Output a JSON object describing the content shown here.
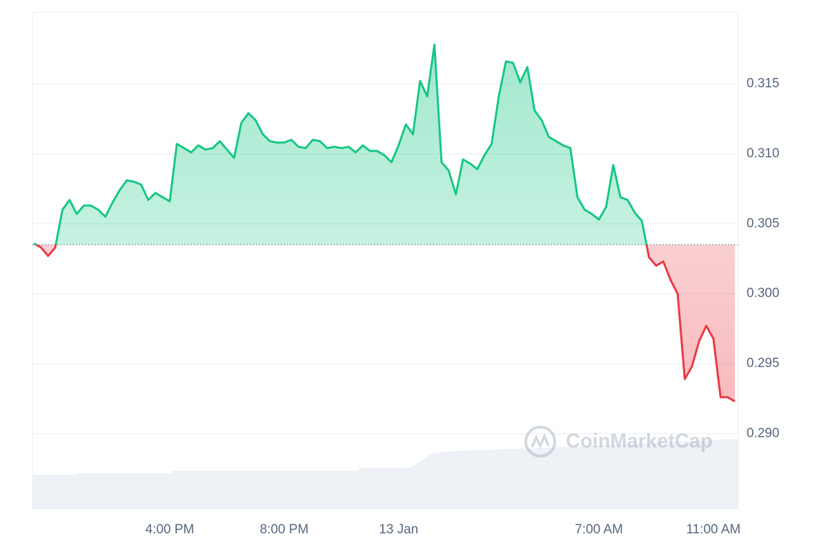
{
  "chart_data": {
    "type": "line",
    "categories": [
      null,
      null,
      null,
      null,
      null,
      null,
      null,
      null,
      null,
      null,
      null,
      null,
      null,
      null,
      null,
      null,
      null,
      null,
      null,
      "4:00 PM",
      null,
      null,
      null,
      null,
      null,
      null,
      null,
      null,
      null,
      null,
      null,
      null,
      null,
      null,
      null,
      "8:00 PM",
      null,
      null,
      null,
      null,
      null,
      null,
      null,
      null,
      null,
      null,
      null,
      null,
      null,
      null,
      null,
      "13 Jan",
      null,
      null,
      null,
      null,
      null,
      null,
      null,
      null,
      null,
      null,
      null,
      null,
      null,
      null,
      null,
      null,
      null,
      null,
      null,
      null,
      null,
      null,
      null,
      null,
      null,
      null,
      null,
      "7:00 AM",
      null,
      null,
      null,
      null,
      null,
      null,
      null,
      null,
      null,
      null,
      null,
      null,
      null,
      null,
      null,
      "11:00 AM",
      null,
      null,
      null
    ],
    "values": [
      0.3036,
      0.3033,
      0.3027,
      0.3033,
      0.306,
      0.3067,
      0.3057,
      0.3063,
      0.3063,
      0.306,
      0.3055,
      0.3065,
      0.3074,
      0.3081,
      0.308,
      0.3078,
      0.3067,
      0.3072,
      0.3069,
      0.3066,
      0.3107,
      0.3104,
      0.3101,
      0.3106,
      0.3103,
      0.3104,
      0.3109,
      0.3103,
      0.3097,
      0.3122,
      0.3129,
      0.3124,
      0.3114,
      0.3109,
      0.3108,
      0.3108,
      0.311,
      0.3105,
      0.3104,
      0.311,
      0.3109,
      0.3104,
      0.3105,
      0.3104,
      0.3105,
      0.3101,
      0.3106,
      0.3102,
      0.3102,
      0.3099,
      0.3094,
      0.3106,
      0.3121,
      0.3114,
      0.3152,
      0.3141,
      0.3178,
      0.3094,
      0.3088,
      0.3071,
      0.3096,
      0.3093,
      0.3089,
      0.3099,
      0.3107,
      0.3141,
      0.3166,
      0.3165,
      0.3151,
      0.3162,
      0.3131,
      0.3124,
      0.3112,
      0.3109,
      0.3106,
      0.3104,
      0.3069,
      0.306,
      0.3057,
      0.3053,
      0.3062,
      0.3092,
      0.3069,
      0.3067,
      0.3058,
      0.3052,
      0.3026,
      0.302,
      0.3023,
      0.301,
      0.3,
      0.2939,
      0.2948,
      0.2966,
      0.2977,
      0.2968,
      0.2926,
      0.2926,
      0.2923
    ],
    "baseline": 0.3035,
    "up_color": "#16c784",
    "down_color": "#ea3943",
    "ylim": [
      0.2846,
      0.3201
    ],
    "yticks": [
      {
        "value": 0.29,
        "label": "0.290"
      },
      0.295,
      {
        "value": 0.3,
        "label": "0.300"
      },
      0.305,
      {
        "value": 0.31,
        "label": "0.310"
      },
      0.315
    ],
    "grid": true,
    "watermark": "CoinMarketCap"
  }
}
